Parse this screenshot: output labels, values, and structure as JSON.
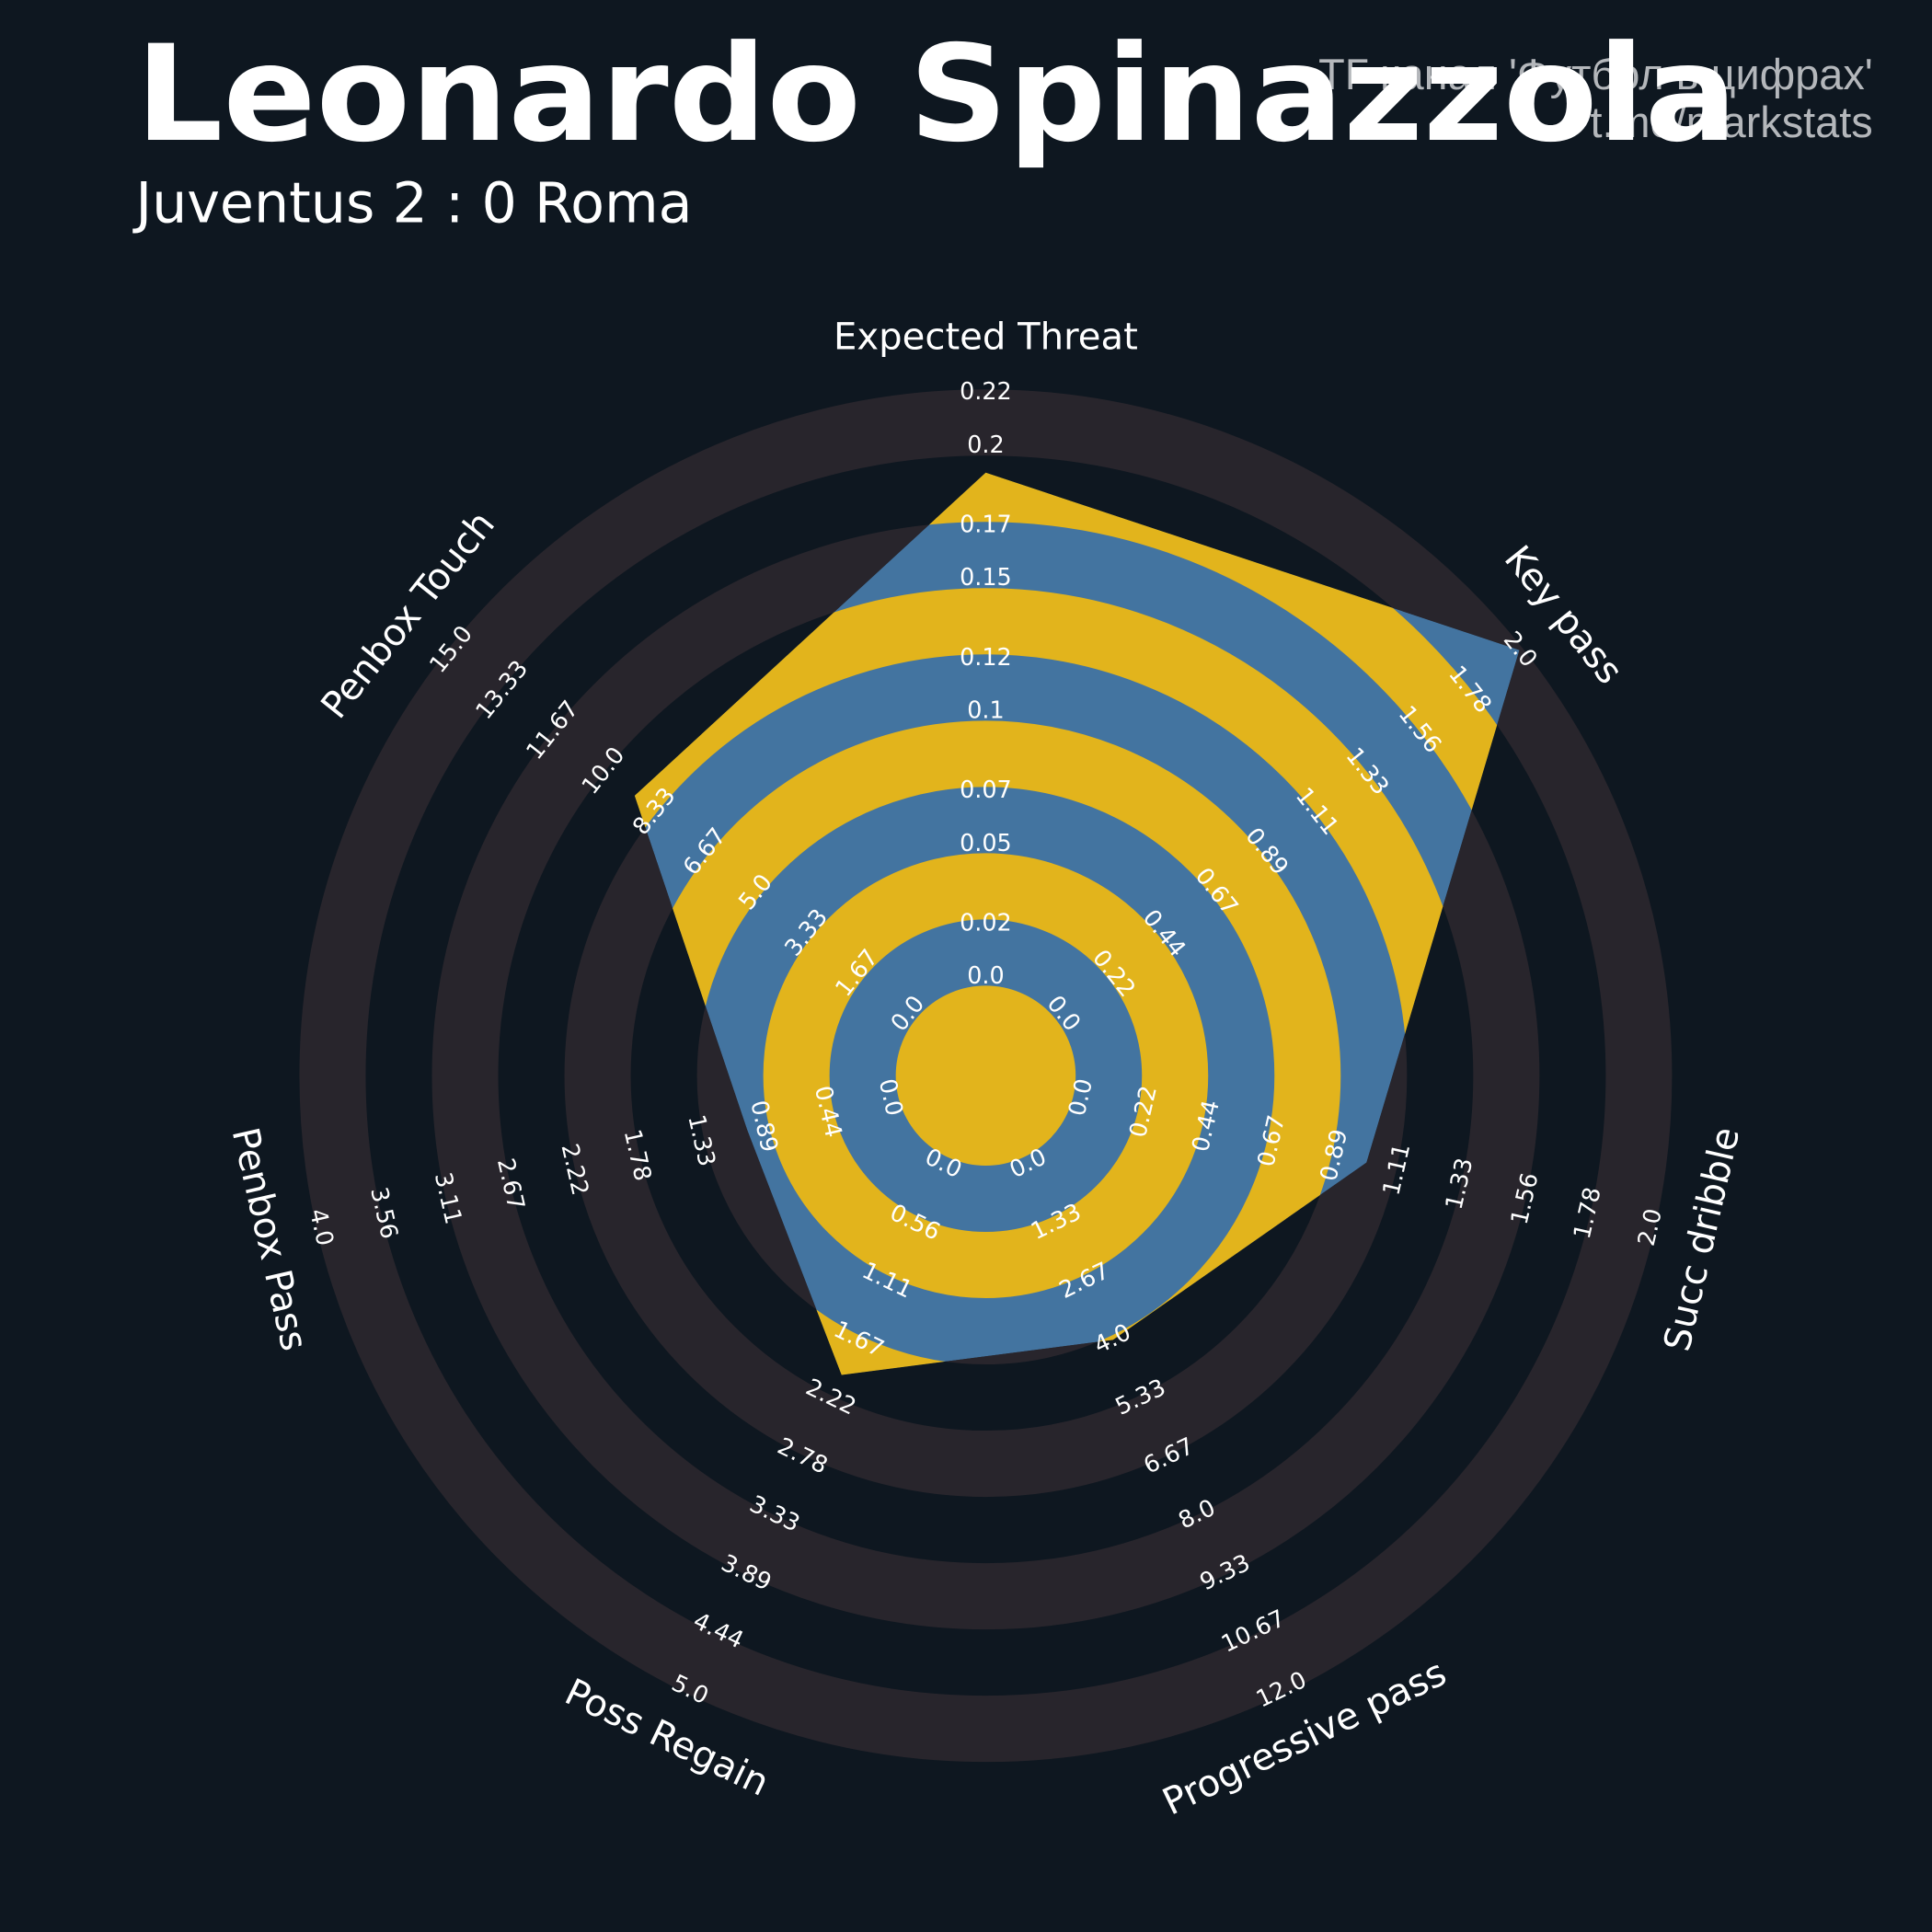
{
  "chart_data": {
    "type": "radar",
    "title": "Leonardo Spinazzola",
    "subtitle": "Juventus 2 : 0 Roma",
    "annotations": [
      "ТГ канал 'Футбол в цифрах'",
      "t.me/markstats"
    ],
    "categories": [
      "Expected Threat",
      "Key pass",
      "Succ dribble",
      "Progressive pass",
      "Poss Regain",
      "Penbox Pass",
      "Penbox Touch"
    ],
    "values": [
      0.19,
      2,
      1,
      4,
      2,
      1,
      9
    ],
    "color": "#4374a0",
    "alt_color": "#e2b41c",
    "ring_color": "#28252c",
    "axes": [
      {
        "ylim": [
          0,
          0.22
        ],
        "yticks": [
          {
            "value": 0,
            "label": "0.0"
          },
          0.02,
          0.05,
          0.07,
          0.1,
          0.12,
          0.15,
          0.17,
          0.2,
          0.22
        ]
      },
      {
        "ylim": [
          0,
          2
        ],
        "yticks": [
          {
            "value": 0,
            "label": "0.0"
          },
          0.22,
          0.44,
          0.67,
          0.89,
          1.11,
          1.33,
          1.56,
          1.78,
          {
            "value": 2,
            "label": "2.0"
          }
        ]
      },
      {
        "ylim": [
          0,
          2
        ],
        "yticks": [
          {
            "value": 0,
            "label": "0.0"
          },
          0.22,
          0.44,
          0.67,
          0.89,
          1.11,
          1.33,
          1.56,
          1.78,
          {
            "value": 2,
            "label": "2.0"
          }
        ]
      },
      {
        "ylim": [
          0,
          12
        ],
        "yticks": [
          {
            "value": 0,
            "label": "0.0"
          },
          1.33,
          2.67,
          {
            "value": 4,
            "label": "4.0"
          },
          5.33,
          6.67,
          {
            "value": 8,
            "label": "8.0"
          },
          9.33,
          10.67,
          {
            "value": 12,
            "label": "12.0"
          }
        ]
      },
      {
        "ylim": [
          0,
          5
        ],
        "yticks": [
          {
            "value": 0,
            "label": "0.0"
          },
          0.56,
          1.11,
          1.67,
          2.22,
          2.78,
          3.33,
          3.89,
          4.44,
          {
            "value": 5,
            "label": "5.0"
          }
        ]
      },
      {
        "ylim": [
          0,
          4
        ],
        "yticks": [
          {
            "value": 0,
            "label": "0.0"
          },
          0.44,
          0.89,
          1.33,
          1.78,
          2.22,
          2.67,
          3.11,
          3.56,
          {
            "value": 4,
            "label": "4.0"
          }
        ]
      },
      {
        "ylim": [
          0,
          15
        ],
        "yticks": [
          {
            "value": 0,
            "label": "0.0"
          },
          1.67,
          3.33,
          {
            "value": 5,
            "label": "5.0"
          },
          6.67,
          8.33,
          {
            "value": 10,
            "label": "10.0"
          },
          11.67,
          13.33,
          {
            "value": 15,
            "label": "15.0"
          }
        ]
      }
    ]
  }
}
